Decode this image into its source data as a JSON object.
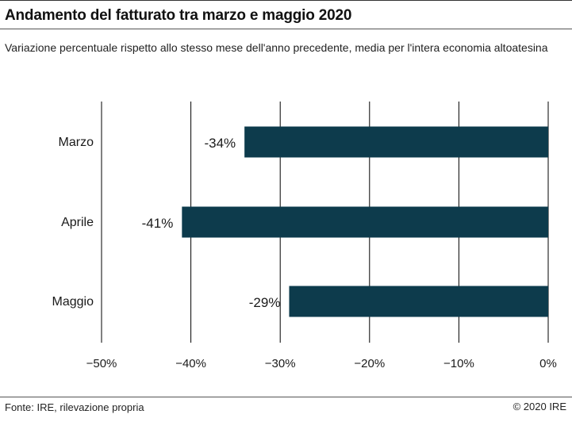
{
  "title": "Andamento del fatturato tra marzo e maggio 2020",
  "subtitle": "Variazione percentuale rispetto allo stesso mese dell'anno precedente, media per l'intera economia altoatesina",
  "source": "Fonte: IRE, rilevazione propria",
  "copyright": "© 2020 IRE",
  "colors": {
    "bar": "#0d3b4c",
    "grid": "#000000"
  },
  "chart_data": {
    "type": "bar",
    "orientation": "horizontal",
    "categories": [
      "Marzo",
      "Aprile",
      "Maggio"
    ],
    "values": [
      -34,
      -41,
      -29
    ],
    "data_labels": [
      "-34%",
      "-41%",
      "-29%"
    ],
    "xlim": [
      -50,
      0
    ],
    "ticks": [
      -50,
      -40,
      -30,
      -20,
      -10,
      0
    ],
    "tick_labels": [
      "−50%",
      "−40%",
      "−30%",
      "−20%",
      "−10%",
      "0%"
    ],
    "grid": true,
    "legend": "none"
  }
}
